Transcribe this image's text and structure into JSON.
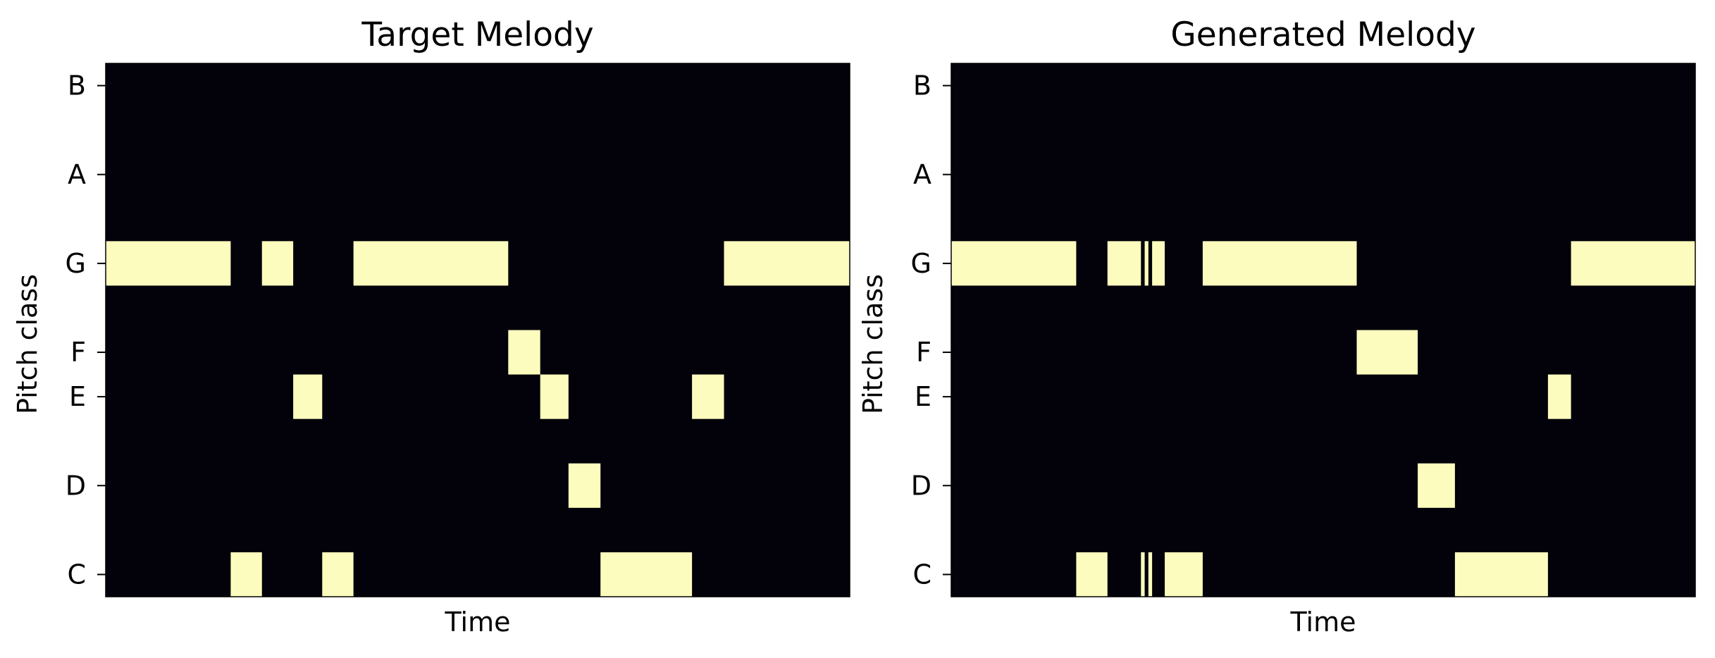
{
  "colors": {
    "background": "#03020a",
    "note": "#fcfcbe",
    "axis": "#000000"
  },
  "chart_data": [
    {
      "type": "heatmap",
      "title": "Target Melody",
      "xlabel": "Time",
      "ylabel": "Pitch class",
      "yticks": [
        "C",
        "D",
        "E",
        "F",
        "G",
        "A",
        "B"
      ],
      "time_range": [
        0,
        100
      ],
      "grid": false,
      "notes": [
        {
          "pitch": "G",
          "start": 0,
          "end": 16.8
        },
        {
          "pitch": "C",
          "start": 16.8,
          "end": 21.0
        },
        {
          "pitch": "G",
          "start": 21.0,
          "end": 25.2
        },
        {
          "pitch": "E",
          "start": 25.2,
          "end": 29.1
        },
        {
          "pitch": "C",
          "start": 29.1,
          "end": 33.3
        },
        {
          "pitch": "G",
          "start": 33.3,
          "end": 54.1
        },
        {
          "pitch": "F",
          "start": 54.1,
          "end": 58.4
        },
        {
          "pitch": "E",
          "start": 58.4,
          "end": 62.2
        },
        {
          "pitch": "D",
          "start": 62.2,
          "end": 66.5
        },
        {
          "pitch": "C",
          "start": 66.5,
          "end": 78.8
        },
        {
          "pitch": "E",
          "start": 78.8,
          "end": 83.1
        },
        {
          "pitch": "G",
          "start": 83.1,
          "end": 100
        }
      ]
    },
    {
      "type": "heatmap",
      "title": "Generated Melody",
      "xlabel": "Time",
      "ylabel": "Pitch class",
      "yticks": [
        "C",
        "D",
        "E",
        "F",
        "G",
        "A",
        "B"
      ],
      "time_range": [
        0,
        100
      ],
      "grid": false,
      "notes": [
        {
          "pitch": "G",
          "start": 0,
          "end": 16.8
        },
        {
          "pitch": "C",
          "start": 16.8,
          "end": 21.0
        },
        {
          "pitch": "G",
          "start": 21.0,
          "end": 25.5
        },
        {
          "pitch": "C",
          "start": 25.5,
          "end": 26.0
        },
        {
          "pitch": "G",
          "start": 26.0,
          "end": 26.5
        },
        {
          "pitch": "C",
          "start": 26.5,
          "end": 27.0
        },
        {
          "pitch": "G",
          "start": 27.0,
          "end": 28.7
        },
        {
          "pitch": "C",
          "start": 28.7,
          "end": 33.8
        },
        {
          "pitch": "G",
          "start": 33.8,
          "end": 54.5
        },
        {
          "pitch": "F",
          "start": 54.5,
          "end": 62.7
        },
        {
          "pitch": "D",
          "start": 62.7,
          "end": 67.7
        },
        {
          "pitch": "C",
          "start": 67.7,
          "end": 80.2
        },
        {
          "pitch": "E",
          "start": 80.2,
          "end": 83.3
        },
        {
          "pitch": "G",
          "start": 83.3,
          "end": 100
        }
      ]
    }
  ]
}
